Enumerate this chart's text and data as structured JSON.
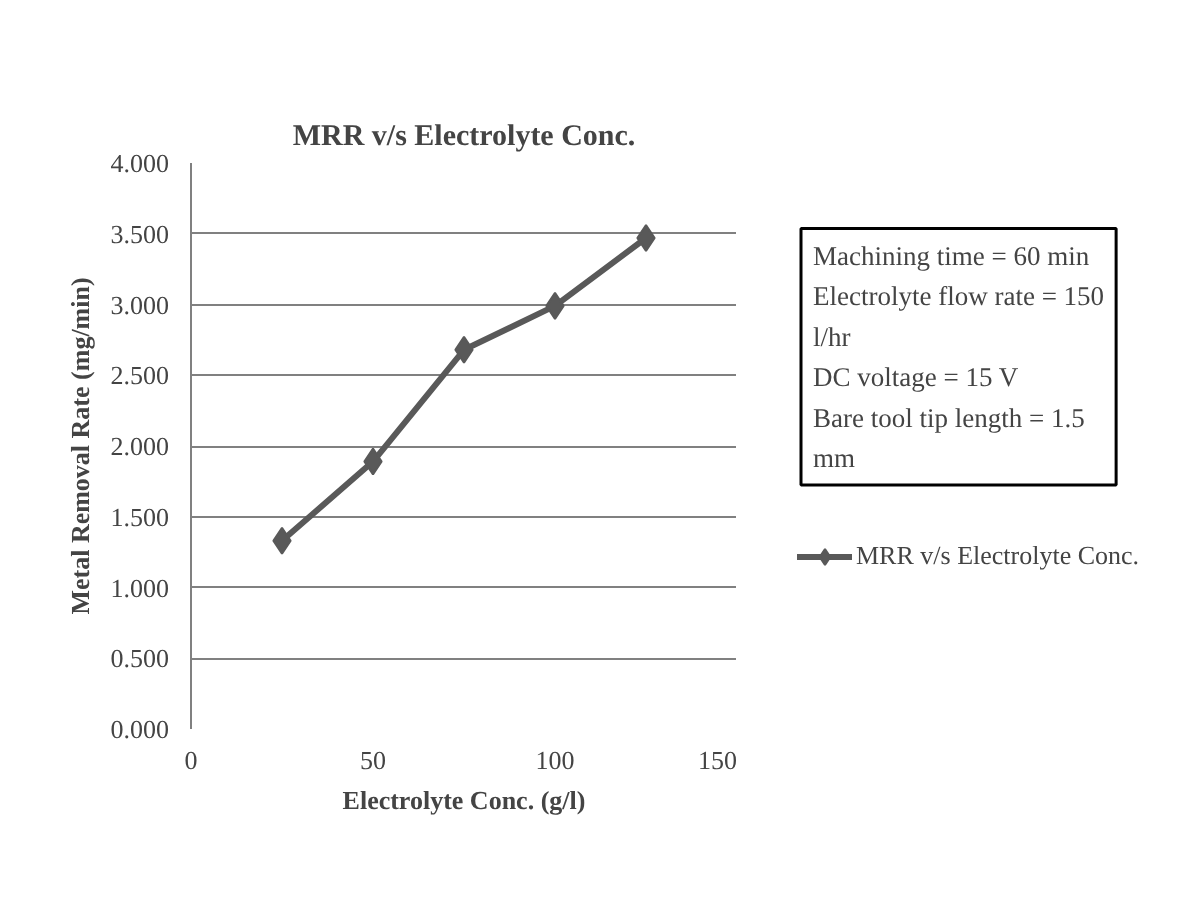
{
  "chart_data": {
    "type": "line",
    "title": "MRR v/s Electrolyte Conc.",
    "xlabel": "Electrolyte Conc. (g/l)",
    "ylabel": "Metal Removal Rate (mg/min)",
    "x": [
      25,
      50,
      75,
      100,
      125
    ],
    "series": [
      {
        "name": "MRR v/s Electrolyte Conc.",
        "color": "#595959",
        "values": [
          1.33,
          1.89,
          2.68,
          2.99,
          3.47
        ]
      }
    ],
    "xlim": [
      0,
      150
    ],
    "xticks": [
      0,
      50,
      100,
      150
    ],
    "ylim": [
      0,
      4
    ],
    "yticks": [
      {
        "value": 0,
        "label": "0.000"
      },
      {
        "value": 0.5,
        "label": "0.500"
      },
      {
        "value": 1,
        "label": "1.000"
      },
      {
        "value": 1.5,
        "label": "1.500"
      },
      {
        "value": 2,
        "label": "2.000"
      },
      {
        "value": 2.5,
        "label": "2.500"
      },
      {
        "value": 3,
        "label": "3.000"
      },
      {
        "value": 3.5,
        "label": "3.500"
      },
      {
        "value": 4,
        "label": "4.000"
      }
    ],
    "grid": "y",
    "legend": "right",
    "marker": "diamond",
    "line_style": "solid",
    "annotations": [
      "Machining time = 60 min\nElectrolyte flow rate = 150\nl/hr\nDC voltage = 15 V\nBare tool tip length = 1.5\nmm"
    ]
  }
}
